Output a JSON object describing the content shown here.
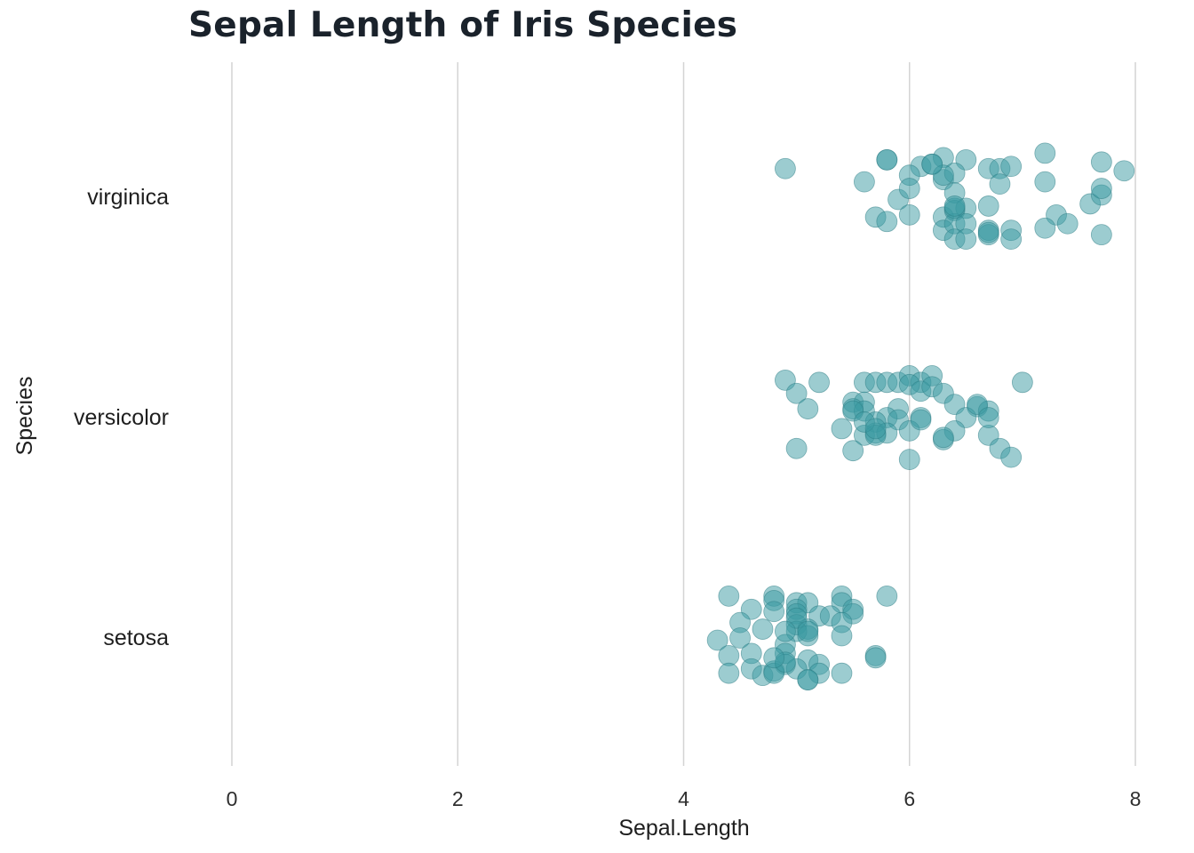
{
  "chart_data": {
    "type": "scatter",
    "title": "Sepal Length of Iris Species",
    "xlabel": "Sepal.Length",
    "ylabel": "Species",
    "xlim": [
      0,
      8
    ],
    "x_ticks": [
      0,
      2,
      4,
      6,
      8
    ],
    "categories": [
      "setosa",
      "versicolor",
      "virginica"
    ],
    "grid": "vertical",
    "legend": "none",
    "point_color": "#3a9aa2",
    "series": [
      {
        "category": "setosa",
        "points": [
          {
            "x": 4.4,
            "dy": 0.19
          },
          {
            "x": 4.8,
            "dy": 0.19
          },
          {
            "x": 5.4,
            "dy": 0.19
          },
          {
            "x": 5.8,
            "dy": 0.19
          },
          {
            "x": 4.8,
            "dy": 0.17
          },
          {
            "x": 5.0,
            "dy": 0.16
          },
          {
            "x": 5.1,
            "dy": 0.16
          },
          {
            "x": 5.4,
            "dy": 0.16
          },
          {
            "x": 4.6,
            "dy": 0.13
          },
          {
            "x": 5.0,
            "dy": 0.13
          },
          {
            "x": 5.5,
            "dy": 0.13
          },
          {
            "x": 5.2,
            "dy": 0.1
          },
          {
            "x": 4.8,
            "dy": 0.12
          },
          {
            "x": 5.0,
            "dy": 0.11
          },
          {
            "x": 5.3,
            "dy": 0.1
          },
          {
            "x": 5.5,
            "dy": 0.11
          },
          {
            "x": 4.5,
            "dy": 0.07
          },
          {
            "x": 4.7,
            "dy": 0.04
          },
          {
            "x": 5.0,
            "dy": 0.06
          },
          {
            "x": 5.1,
            "dy": 0.04
          },
          {
            "x": 5.4,
            "dy": 0.07
          },
          {
            "x": 5.0,
            "dy": 0.03
          },
          {
            "x": 4.3,
            "dy": -0.01
          },
          {
            "x": 4.5,
            "dy": 0.0
          },
          {
            "x": 4.9,
            "dy": -0.03
          },
          {
            "x": 5.1,
            "dy": 0.01
          },
          {
            "x": 5.4,
            "dy": 0.01
          },
          {
            "x": 4.4,
            "dy": -0.08
          },
          {
            "x": 4.6,
            "dy": -0.07
          },
          {
            "x": 4.9,
            "dy": -0.07
          },
          {
            "x": 5.1,
            "dy": -0.1
          },
          {
            "x": 5.7,
            "dy": -0.08
          },
          {
            "x": 4.6,
            "dy": -0.14
          },
          {
            "x": 4.9,
            "dy": -0.12
          },
          {
            "x": 5.2,
            "dy": -0.12
          },
          {
            "x": 5.7,
            "dy": -0.09
          },
          {
            "x": 4.4,
            "dy": -0.16
          },
          {
            "x": 4.7,
            "dy": -0.17
          },
          {
            "x": 4.8,
            "dy": -0.15
          },
          {
            "x": 5.0,
            "dy": -0.14
          },
          {
            "x": 5.2,
            "dy": -0.16
          },
          {
            "x": 5.4,
            "dy": -0.16
          },
          {
            "x": 5.1,
            "dy": -0.19
          },
          {
            "x": 4.8,
            "dy": -0.16
          },
          {
            "x": 5.1,
            "dy": -0.19
          },
          {
            "x": 4.9,
            "dy": -0.11
          },
          {
            "x": 5.0,
            "dy": 0.09
          },
          {
            "x": 5.1,
            "dy": 0.03
          },
          {
            "x": 4.9,
            "dy": 0.03
          },
          {
            "x": 4.8,
            "dy": -0.09
          }
        ]
      },
      {
        "category": "versicolor",
        "points": [
          {
            "x": 4.9,
            "dy": 0.17
          },
          {
            "x": 5.2,
            "dy": 0.16
          },
          {
            "x": 5.6,
            "dy": 0.16
          },
          {
            "x": 5.7,
            "dy": 0.16
          },
          {
            "x": 5.8,
            "dy": 0.16
          },
          {
            "x": 5.9,
            "dy": 0.16
          },
          {
            "x": 6.0,
            "dy": 0.19
          },
          {
            "x": 6.1,
            "dy": 0.16
          },
          {
            "x": 6.2,
            "dy": 0.19
          },
          {
            "x": 7.0,
            "dy": 0.16
          },
          {
            "x": 5.0,
            "dy": 0.11
          },
          {
            "x": 6.0,
            "dy": 0.15
          },
          {
            "x": 6.1,
            "dy": 0.12
          },
          {
            "x": 6.2,
            "dy": 0.14
          },
          {
            "x": 6.3,
            "dy": 0.11
          },
          {
            "x": 5.1,
            "dy": 0.04
          },
          {
            "x": 5.5,
            "dy": 0.07
          },
          {
            "x": 5.6,
            "dy": 0.07
          },
          {
            "x": 5.9,
            "dy": 0.04
          },
          {
            "x": 6.4,
            "dy": 0.06
          },
          {
            "x": 6.6,
            "dy": 0.05
          },
          {
            "x": 6.7,
            "dy": 0.03
          },
          {
            "x": 5.5,
            "dy": 0.04
          },
          {
            "x": 5.6,
            "dy": 0.03
          },
          {
            "x": 5.8,
            "dy": 0.0
          },
          {
            "x": 6.1,
            "dy": 0.0
          },
          {
            "x": 6.5,
            "dy": 0.0
          },
          {
            "x": 6.6,
            "dy": 0.06
          },
          {
            "x": 5.4,
            "dy": -0.05
          },
          {
            "x": 5.7,
            "dy": -0.02
          },
          {
            "x": 5.9,
            "dy": -0.01
          },
          {
            "x": 6.0,
            "dy": -0.06
          },
          {
            "x": 6.1,
            "dy": -0.01
          },
          {
            "x": 6.4,
            "dy": -0.06
          },
          {
            "x": 5.6,
            "dy": -0.08
          },
          {
            "x": 5.7,
            "dy": -0.07
          },
          {
            "x": 5.8,
            "dy": -0.07
          },
          {
            "x": 6.3,
            "dy": -0.1
          },
          {
            "x": 6.7,
            "dy": -0.08
          },
          {
            "x": 5.0,
            "dy": -0.14
          },
          {
            "x": 5.5,
            "dy": -0.15
          },
          {
            "x": 6.8,
            "dy": -0.14
          },
          {
            "x": 6.9,
            "dy": -0.18
          },
          {
            "x": 6.0,
            "dy": -0.19
          },
          {
            "x": 6.3,
            "dy": -0.09
          },
          {
            "x": 5.7,
            "dy": -0.08
          },
          {
            "x": 5.5,
            "dy": 0.03
          },
          {
            "x": 6.7,
            "dy": 0.0
          },
          {
            "x": 5.6,
            "dy": -0.02
          },
          {
            "x": 5.7,
            "dy": -0.05
          }
        ]
      },
      {
        "category": "virginica",
        "points": [
          {
            "x": 5.8,
            "dy": 0.17
          },
          {
            "x": 6.3,
            "dy": 0.18
          },
          {
            "x": 6.5,
            "dy": 0.17
          },
          {
            "x": 7.2,
            "dy": 0.2
          },
          {
            "x": 4.9,
            "dy": 0.13
          },
          {
            "x": 6.1,
            "dy": 0.14
          },
          {
            "x": 6.2,
            "dy": 0.15
          },
          {
            "x": 6.7,
            "dy": 0.13
          },
          {
            "x": 6.8,
            "dy": 0.13
          },
          {
            "x": 6.9,
            "dy": 0.14
          },
          {
            "x": 7.7,
            "dy": 0.16
          },
          {
            "x": 7.9,
            "dy": 0.12
          },
          {
            "x": 5.6,
            "dy": 0.07
          },
          {
            "x": 6.0,
            "dy": 0.1
          },
          {
            "x": 6.3,
            "dy": 0.08
          },
          {
            "x": 6.4,
            "dy": 0.11
          },
          {
            "x": 6.8,
            "dy": 0.06
          },
          {
            "x": 7.2,
            "dy": 0.07
          },
          {
            "x": 5.9,
            "dy": -0.01
          },
          {
            "x": 6.0,
            "dy": 0.04
          },
          {
            "x": 6.4,
            "dy": 0.02
          },
          {
            "x": 6.7,
            "dy": -0.04
          },
          {
            "x": 7.6,
            "dy": -0.03
          },
          {
            "x": 7.7,
            "dy": 0.01
          },
          {
            "x": 5.7,
            "dy": -0.09
          },
          {
            "x": 6.0,
            "dy": -0.08
          },
          {
            "x": 6.3,
            "dy": -0.09
          },
          {
            "x": 6.4,
            "dy": -0.06
          },
          {
            "x": 6.5,
            "dy": -0.05
          },
          {
            "x": 7.3,
            "dy": -0.08
          },
          {
            "x": 7.7,
            "dy": 0.04
          },
          {
            "x": 5.8,
            "dy": -0.11
          },
          {
            "x": 6.3,
            "dy": -0.15
          },
          {
            "x": 6.4,
            "dy": -0.12
          },
          {
            "x": 6.5,
            "dy": -0.12
          },
          {
            "x": 6.7,
            "dy": -0.15
          },
          {
            "x": 6.9,
            "dy": -0.15
          },
          {
            "x": 7.2,
            "dy": -0.14
          },
          {
            "x": 7.4,
            "dy": -0.12
          },
          {
            "x": 7.7,
            "dy": -0.17
          },
          {
            "x": 6.4,
            "dy": -0.19
          },
          {
            "x": 6.5,
            "dy": -0.19
          },
          {
            "x": 6.7,
            "dy": -0.17
          },
          {
            "x": 6.9,
            "dy": -0.19
          },
          {
            "x": 5.8,
            "dy": 0.17
          },
          {
            "x": 6.3,
            "dy": 0.1
          },
          {
            "x": 6.2,
            "dy": 0.15
          },
          {
            "x": 6.4,
            "dy": -0.05
          },
          {
            "x": 6.7,
            "dy": -0.16
          },
          {
            "x": 6.4,
            "dy": -0.04
          }
        ]
      }
    ]
  }
}
